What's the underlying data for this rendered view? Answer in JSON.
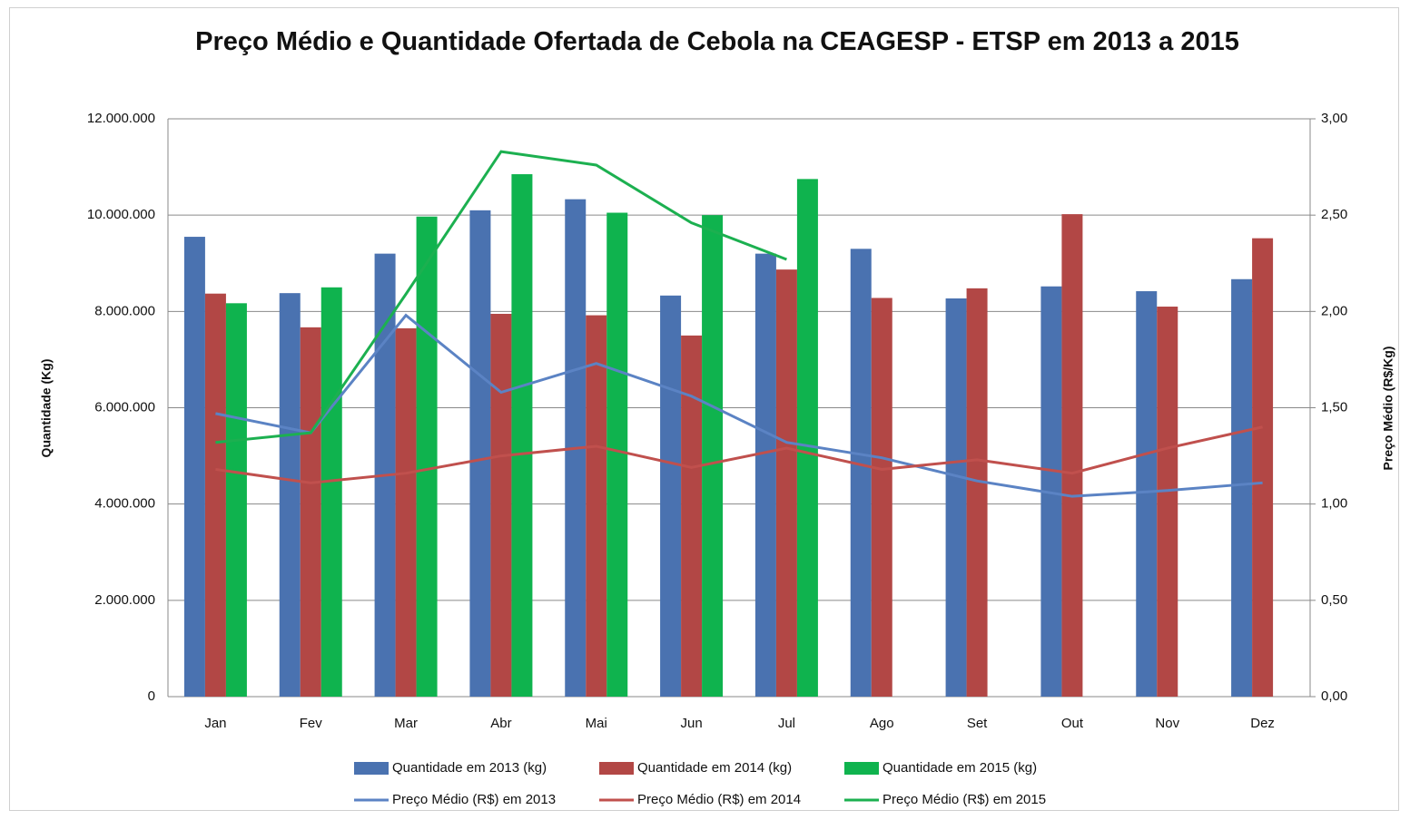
{
  "chart_data": {
    "type": "bar",
    "title": "Preço Médio e Quantidade Ofertada de Cebola na CEAGESP - ETSP em 2013 a 2015",
    "y_label": "Quantidade (Kg)",
    "y2_label": "Preço Médio (R$/Kg)",
    "categories": [
      "Jan",
      "Fev",
      "Mar",
      "Abr",
      "Mai",
      "Jun",
      "Jul",
      "Ago",
      "Set",
      "Out",
      "Nov",
      "Dez"
    ],
    "ylim": [
      0,
      12000000
    ],
    "yticks": [
      0,
      {
        "value": 2000000,
        "label": "2.000.000"
      },
      {
        "value": 4000000,
        "label": "4.000.000"
      },
      {
        "value": 6000000,
        "label": "6.000.000"
      },
      {
        "value": 8000000,
        "label": "8.000.000"
      },
      {
        "value": 10000000,
        "label": "10.000.000"
      },
      {
        "value": 12000000,
        "label": "12.000.000"
      }
    ],
    "y2lim": [
      0,
      3
    ],
    "y2ticks": [
      {
        "value": 0,
        "label": "0,00"
      },
      {
        "value": 0.5,
        "label": "0,50"
      },
      {
        "value": 1,
        "label": "1,00"
      },
      {
        "value": 1.5,
        "label": "1,50"
      },
      {
        "value": 2,
        "label": "2,00"
      },
      {
        "value": 2.5,
        "label": "2,50"
      },
      {
        "value": 3,
        "label": "3,00"
      }
    ],
    "grid": true,
    "legend": "bottom",
    "series": [
      {
        "name": "Quantidade em 2013 (kg)",
        "type": "bar",
        "color": "#4a72b0",
        "values": [
          9550000,
          8380000,
          9200000,
          10100000,
          10330000,
          8330000,
          9200000,
          9300000,
          8270000,
          8520000,
          8420000,
          8670000
        ]
      },
      {
        "name": "Quantidade em 2014 (kg)",
        "type": "bar",
        "color": "#b24745",
        "values": [
          8370000,
          7670000,
          7650000,
          7950000,
          7920000,
          7500000,
          8870000,
          8280000,
          8480000,
          10020000,
          8100000,
          9520000
        ]
      },
      {
        "name": "Quantidade em 2015 (kg)",
        "type": "bar",
        "color": "#0fb34e",
        "values": [
          8170000,
          8500000,
          9970000,
          10850000,
          10050000,
          10000000,
          10750000,
          null,
          null,
          null,
          null,
          null
        ]
      },
      {
        "name": "Preço Médio (R$) em 2013",
        "type": "line",
        "axis": "y2",
        "color": "#5b83c4",
        "values": [
          1.47,
          1.37,
          1.98,
          1.58,
          1.73,
          1.56,
          1.32,
          1.24,
          1.12,
          1.04,
          1.07,
          1.11
        ]
      },
      {
        "name": "Preço Médio (R$) em 2014",
        "type": "line",
        "axis": "y2",
        "color": "#c0504d",
        "values": [
          1.18,
          1.11,
          1.16,
          1.25,
          1.3,
          1.19,
          1.29,
          1.18,
          1.23,
          1.16,
          1.29,
          1.4
        ]
      },
      {
        "name": "Preço Médio (R$) em 2015",
        "type": "line",
        "axis": "y2",
        "color": "#1cb050",
        "values": [
          1.32,
          1.37,
          2.09,
          2.83,
          2.76,
          2.46,
          2.27,
          null,
          null,
          null,
          null,
          null
        ]
      }
    ]
  }
}
